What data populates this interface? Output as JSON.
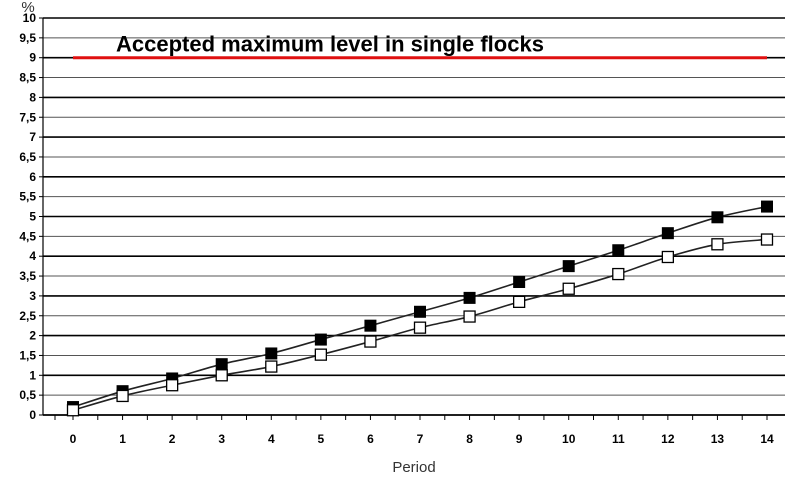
{
  "chart_data": {
    "type": "line",
    "title": "",
    "xlabel": "Period",
    "ylabel": "%",
    "x": [
      0,
      1,
      2,
      3,
      4,
      5,
      6,
      7,
      8,
      9,
      10,
      11,
      12,
      13,
      14
    ],
    "xlim": [
      0,
      14
    ],
    "ylim": [
      0,
      10
    ],
    "y_ticks": [
      "0",
      "0,5",
      "1",
      "1,5",
      "2",
      "2,5",
      "3",
      "3,5",
      "4",
      "4,5",
      "5",
      "5,5",
      "6",
      "6,5",
      "7",
      "7,5",
      "8",
      "8,5",
      "9",
      "9,5",
      "10"
    ],
    "x_ticks": [
      "0",
      "1",
      "2",
      "3",
      "4",
      "5",
      "6",
      "7",
      "8",
      "9",
      "10",
      "11",
      "12",
      "13",
      "14"
    ],
    "grid": true,
    "series": [
      {
        "marker": "filled-square",
        "color": "#000000",
        "values": [
          0.2,
          0.6,
          0.92,
          1.28,
          1.55,
          1.9,
          2.25,
          2.6,
          2.95,
          3.35,
          3.75,
          4.15,
          4.58,
          4.98,
          5.25
        ]
      },
      {
        "marker": "open-square",
        "color": "#000000",
        "values": [
          0.12,
          0.48,
          0.75,
          1.0,
          1.22,
          1.52,
          1.85,
          2.2,
          2.48,
          2.85,
          3.18,
          3.55,
          3.98,
          4.3,
          4.42
        ]
      }
    ],
    "reference_line": {
      "value": 9,
      "color": "#e01010",
      "label": "Accepted maximum level in single flocks"
    }
  }
}
